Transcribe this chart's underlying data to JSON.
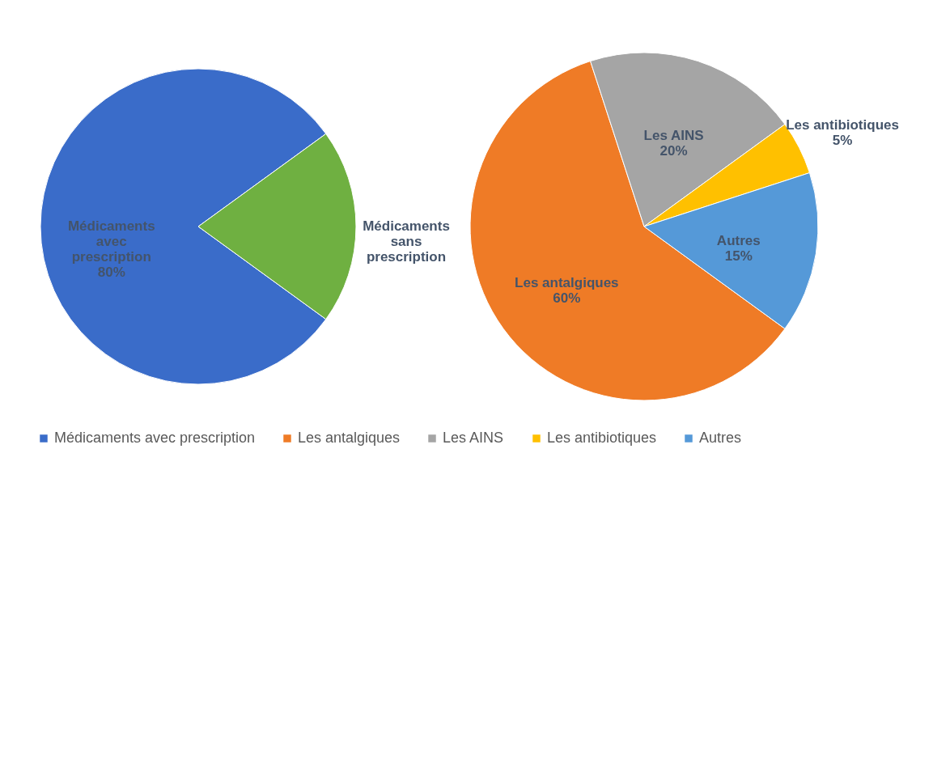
{
  "chart_data": [
    {
      "type": "pie",
      "categories": [
        "Médicaments avec prescription",
        "Médicaments sans prescription"
      ],
      "values": [
        80,
        20
      ],
      "colors": [
        "#3a6cc9",
        "#6fb041"
      ],
      "value_labels": [
        "80%",
        null
      ],
      "legend": "bottom"
    },
    {
      "type": "pie",
      "categories": [
        "Les antalgiques",
        "Les AINS",
        "Les antibiotiques",
        "Autres"
      ],
      "values": [
        60,
        20,
        5,
        15
      ],
      "colors": [
        "#ef7b26",
        "#a5a5a5",
        "#ffc000",
        "#5599d8"
      ],
      "value_labels": [
        "60%",
        "20%",
        "5%",
        "15%"
      ],
      "legend": "bottom"
    }
  ]
}
